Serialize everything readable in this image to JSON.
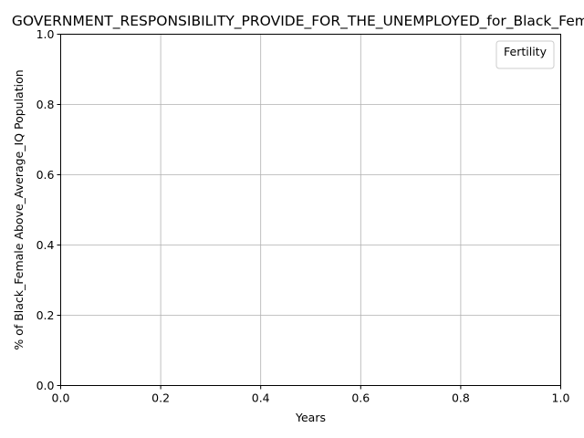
{
  "chart_data": {
    "type": "line",
    "title": "GOVERNMENT_RESPONSIBILITY_PROVIDE_FOR_THE_UNEMPLOYED_for_Black_Female",
    "xlabel": "Years",
    "ylabel": "% of Black_Female Above_Average_IQ Population",
    "xlim": [
      0.0,
      1.0
    ],
    "ylim": [
      0.0,
      1.0
    ],
    "x_ticks": [
      "0.0",
      "0.2",
      "0.4",
      "0.6",
      "0.8",
      "1.0"
    ],
    "y_ticks": [
      "0.0",
      "0.2",
      "0.4",
      "0.6",
      "0.8",
      "1.0"
    ],
    "grid": true,
    "legend": {
      "title": "Fertility",
      "placement": "top-right",
      "entries": []
    },
    "series": []
  }
}
